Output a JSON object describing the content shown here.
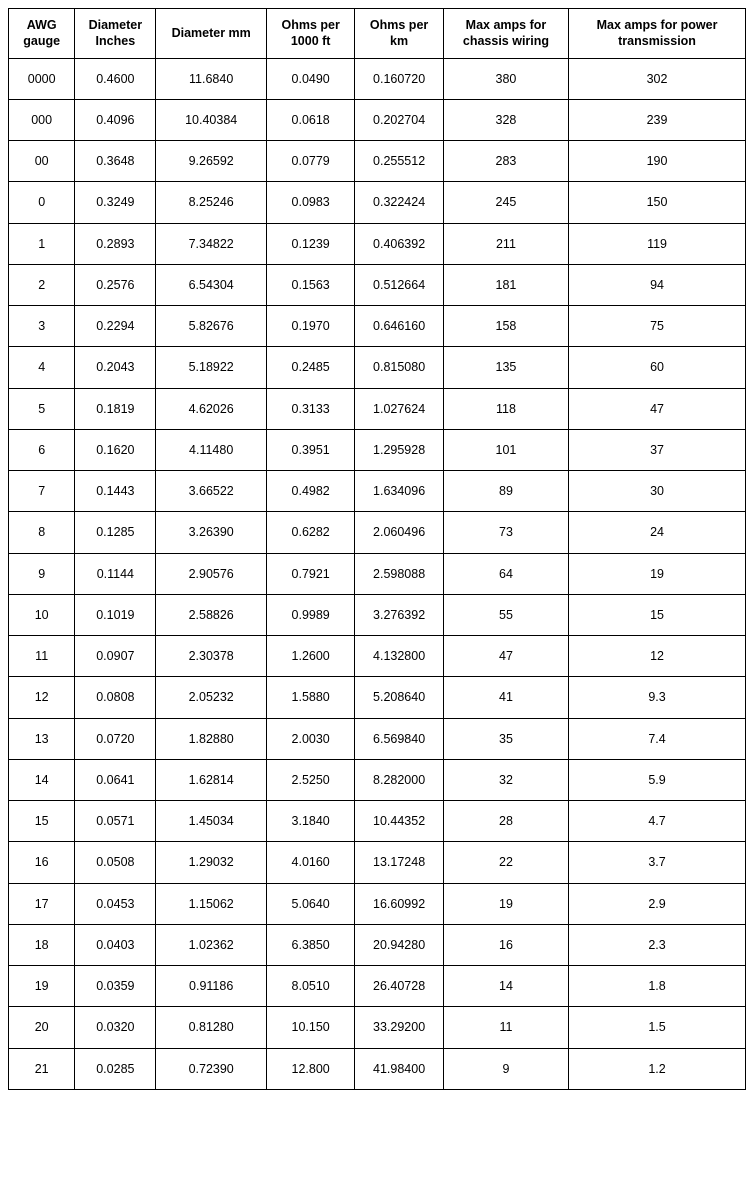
{
  "table": {
    "type": "table",
    "background_color": "#ffffff",
    "text_color": "#000000",
    "border_color": "#000000",
    "header_font_weight": "bold",
    "cell_fontsize_pt": 9,
    "column_widths_pct": [
      9,
      11,
      15,
      12,
      12,
      17,
      24
    ],
    "columns": [
      "AWG gauge",
      "Diameter Inches",
      "Diameter mm",
      "Ohms per 1000 ft",
      "Ohms per km",
      "Max amps for chassis wiring",
      "Max amps for power transmission"
    ],
    "rows": [
      [
        "0000",
        "0.4600",
        "11.6840",
        "0.0490",
        "0.160720",
        "380",
        "302"
      ],
      [
        "000",
        "0.4096",
        "10.40384",
        "0.0618",
        "0.202704",
        "328",
        "239"
      ],
      [
        "00",
        "0.3648",
        "9.26592",
        "0.0779",
        "0.255512",
        "283",
        "190"
      ],
      [
        "0",
        "0.3249",
        "8.25246",
        "0.0983",
        "0.322424",
        "245",
        "150"
      ],
      [
        "1",
        "0.2893",
        "7.34822",
        "0.1239",
        "0.406392",
        "211",
        "119"
      ],
      [
        "2",
        "0.2576",
        "6.54304",
        "0.1563",
        "0.512664",
        "181",
        "94"
      ],
      [
        "3",
        "0.2294",
        "5.82676",
        "0.1970",
        "0.646160",
        "158",
        "75"
      ],
      [
        "4",
        "0.2043",
        "5.18922",
        "0.2485",
        "0.815080",
        "135",
        "60"
      ],
      [
        "5",
        "0.1819",
        "4.62026",
        "0.3133",
        "1.027624",
        "118",
        "47"
      ],
      [
        "6",
        "0.1620",
        "4.11480",
        "0.3951",
        "1.295928",
        "101",
        "37"
      ],
      [
        "7",
        "0.1443",
        "3.66522",
        "0.4982",
        "1.634096",
        "89",
        "30"
      ],
      [
        "8",
        "0.1285",
        "3.26390",
        "0.6282",
        "2.060496",
        "73",
        "24"
      ],
      [
        "9",
        "0.1144",
        "2.90576",
        "0.7921",
        "2.598088",
        "64",
        "19"
      ],
      [
        "10",
        "0.1019",
        "2.58826",
        "0.9989",
        "3.276392",
        "55",
        "15"
      ],
      [
        "11",
        "0.0907",
        "2.30378",
        "1.2600",
        "4.132800",
        "47",
        "12"
      ],
      [
        "12",
        "0.0808",
        "2.05232",
        "1.5880",
        "5.208640",
        "41",
        "9.3"
      ],
      [
        "13",
        "0.0720",
        "1.82880",
        "2.0030",
        "6.569840",
        "35",
        "7.4"
      ],
      [
        "14",
        "0.0641",
        "1.62814",
        "2.5250",
        "8.282000",
        "32",
        "5.9"
      ],
      [
        "15",
        "0.0571",
        "1.45034",
        "3.1840",
        "10.44352",
        "28",
        "4.7"
      ],
      [
        "16",
        "0.0508",
        "1.29032",
        "4.0160",
        "13.17248",
        "22",
        "3.7"
      ],
      [
        "17",
        "0.0453",
        "1.15062",
        "5.0640",
        "16.60992",
        "19",
        "2.9"
      ],
      [
        "18",
        "0.0403",
        "1.02362",
        "6.3850",
        "20.94280",
        "16",
        "2.3"
      ],
      [
        "19",
        "0.0359",
        "0.91186",
        "8.0510",
        "26.40728",
        "14",
        "1.8"
      ],
      [
        "20",
        "0.0320",
        "0.81280",
        "10.150",
        "33.29200",
        "11",
        "1.5"
      ],
      [
        "21",
        "0.0285",
        "0.72390",
        "12.800",
        "41.98400",
        "9",
        "1.2"
      ]
    ]
  }
}
